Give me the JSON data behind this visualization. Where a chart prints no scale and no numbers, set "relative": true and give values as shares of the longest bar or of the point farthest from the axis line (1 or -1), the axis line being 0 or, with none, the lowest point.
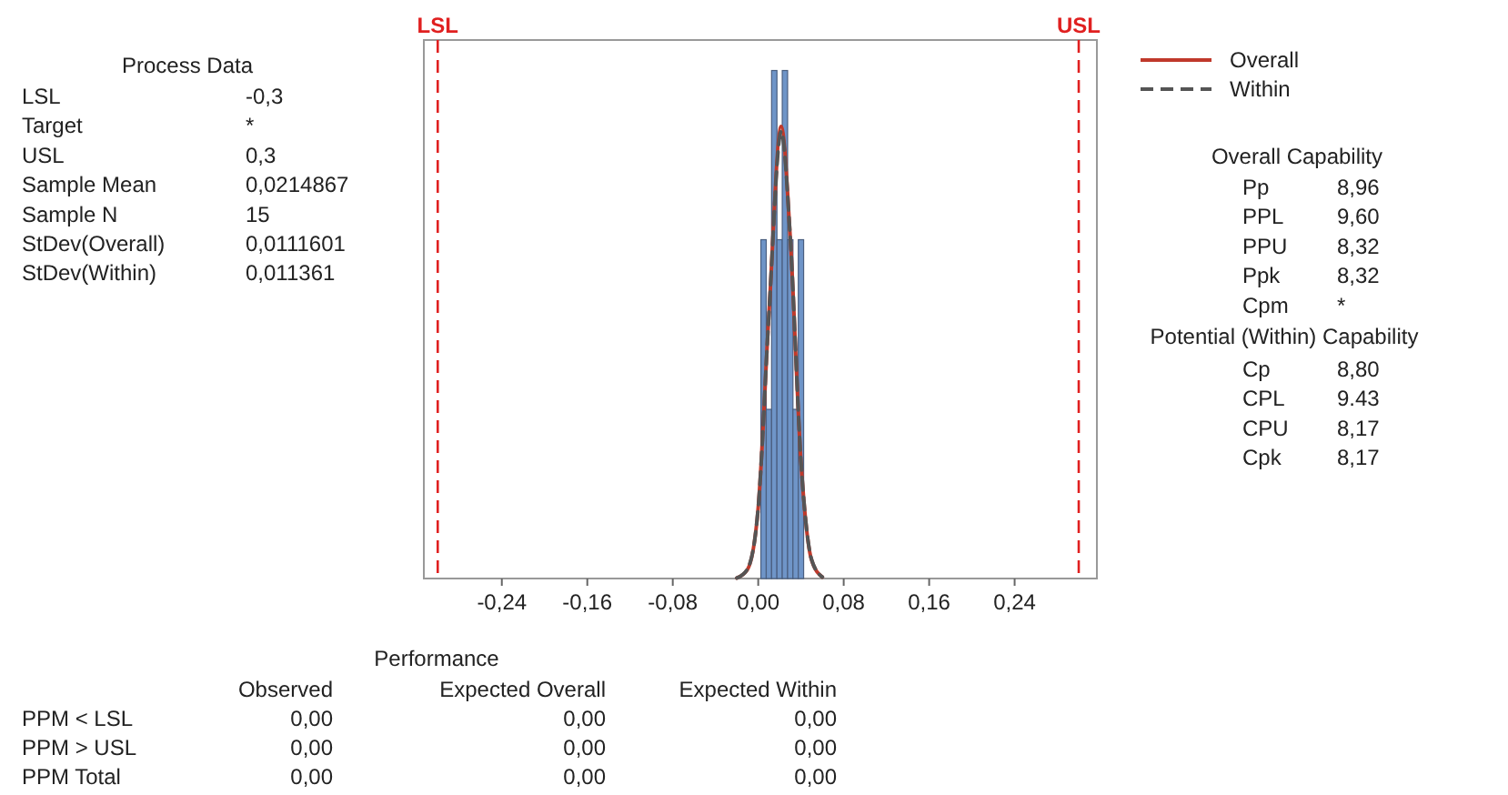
{
  "chart_data": {
    "type": "histogram",
    "relative": true,
    "color": "#6f95c8",
    "bins": [
      0.0025,
      0.0075,
      0.0125,
      0.0175,
      0.0225,
      0.0275,
      0.0325,
      0.0375,
      0.0425
    ],
    "values": [
      0.667,
      0.333,
      1,
      0.667,
      1,
      0.667,
      0.333,
      0.667
    ],
    "series": [
      {
        "type": "line",
        "name": "Overall",
        "color": "#c0392b",
        "line_style": "solid",
        "x": [
          -0.02,
          -0.01,
          0,
          0.01,
          0.0215,
          0.03,
          0.04,
          0.05,
          0.06
        ],
        "values": [
          0.001,
          0.018,
          0.14,
          0.52,
          0.89,
          0.67,
          0.23,
          0.036,
          0.003
        ]
      },
      {
        "type": "line",
        "name": "Within",
        "color": "#555555",
        "line_style": "dashed",
        "x": [
          -0.02,
          -0.01,
          0,
          0.01,
          0.0215,
          0.03,
          0.04,
          0.05,
          0.06
        ],
        "values": [
          0.001,
          0.019,
          0.14,
          0.52,
          0.88,
          0.67,
          0.23,
          0.037,
          0.003
        ]
      }
    ],
    "xlim": [
      -0.313,
      0.317
    ],
    "xticks": [
      {
        "value": -0.24,
        "label": "-0,24"
      },
      {
        "value": -0.16,
        "label": "-0,16"
      },
      {
        "value": -0.08,
        "label": "-0,08"
      },
      {
        "value": 0,
        "label": "0,00"
      },
      {
        "value": 0.08,
        "label": "0,08"
      },
      {
        "value": 0.16,
        "label": "0,16"
      },
      {
        "value": 0.24,
        "label": "0,24"
      }
    ],
    "ref_lines": [
      {
        "axis": "x",
        "value": -0.3,
        "label": "LSL",
        "color": "#e02020",
        "line_style": "dashed"
      },
      {
        "axis": "x",
        "value": 0.3,
        "label": "USL",
        "color": "#e02020",
        "line_style": "dashed"
      }
    ],
    "legend": "top right",
    "grid": false,
    "annotations": [
      "Process Data",
      "LSL",
      "-0,3",
      "Target",
      "*",
      "USL",
      "0,3",
      "Sample Mean",
      "0,0214867",
      "Sample N",
      "15",
      "StDev(Overall)",
      "0,0111601",
      "StDev(Within)",
      "0,011361",
      "Overall Capability",
      "Pp",
      "8,96",
      "PPL",
      "9,60",
      "PPU",
      "8,32",
      "Ppk",
      "8,32",
      "Cpm",
      "*",
      "Potential (Within) Capability",
      "Cp",
      "8,80",
      "CPL",
      "9.43",
      "CPU",
      "8,17",
      "Cpk",
      "8,17",
      "Performance",
      "Observed",
      "Expected Overall",
      "Expected Within",
      "PPM < LSL",
      "0,00",
      "0,00",
      "0,00",
      "PPM > USL",
      "0,00",
      "0,00",
      "0,00",
      "PPM Total",
      "0,00",
      "0,00",
      "0,00"
    ]
  }
}
